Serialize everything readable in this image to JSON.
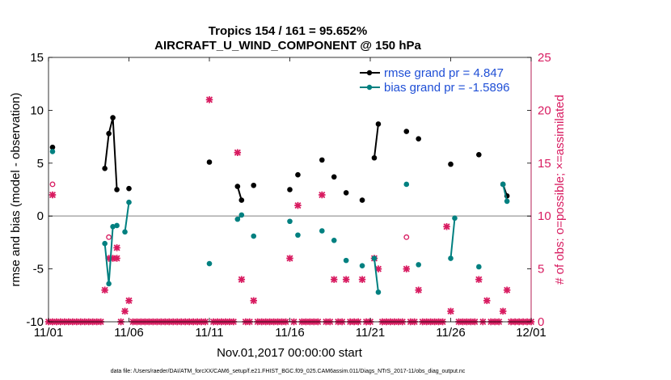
{
  "chart_data": {
    "type": "line",
    "title": "Tropics 154 / 161 = 95.652%",
    "subtitle": "AIRCRAFT_U_WIND_COMPONENT @ 150 hPa",
    "xlabel": "Nov.01,2017 00:00:00 start",
    "ylabel": "rmse and bias (model - observation)",
    "y2label": "# of obs: o=possible; ×=assimilated",
    "footer": "data file: /Users/raeder/DAI/ATM_forcXX/CAM6_setup/f.e21.FHIST_BGC.f09_025.CAM6assim.011/Diags_NTrS_2017-11/obs_diag_output.nc",
    "x_ticks": [
      "11/01",
      "11/06",
      "11/11",
      "11/16",
      "11/21",
      "11/26",
      "12/01"
    ],
    "xlim": [
      1,
      31
    ],
    "ylim": [
      -10,
      15
    ],
    "y_ticks": [
      -10,
      -5,
      0,
      5,
      10,
      15
    ],
    "y2lim": [
      0,
      25
    ],
    "y2_ticks": [
      0,
      5,
      10,
      15,
      20,
      25
    ],
    "zero_line": 0,
    "legend_position": "top-right",
    "colors": {
      "rmse": "#000000",
      "bias": "#008080",
      "obs": "#d81b60",
      "legend_text": "#1f4fd6",
      "zero_line": "#b0b0b0"
    },
    "series": [
      {
        "name": "rmse grand pr = 4.847",
        "key": "rmse",
        "points": [
          [
            1.25,
            6.5
          ],
          [
            4.5,
            4.5
          ],
          [
            4.75,
            7.8
          ],
          [
            5.0,
            9.3
          ],
          [
            5.25,
            2.5
          ],
          [
            6.0,
            2.6
          ],
          [
            11.0,
            5.1
          ],
          [
            12.75,
            2.8
          ],
          [
            13.0,
            1.5
          ],
          [
            13.75,
            2.9
          ],
          [
            16.0,
            2.5
          ],
          [
            16.5,
            3.9
          ],
          [
            18.0,
            5.3
          ],
          [
            18.75,
            3.7
          ],
          [
            19.5,
            2.2
          ],
          [
            20.5,
            1.5
          ],
          [
            21.25,
            5.5
          ],
          [
            21.5,
            8.7
          ],
          [
            23.25,
            8.0
          ],
          [
            24.0,
            7.3
          ],
          [
            26.0,
            4.9
          ],
          [
            27.75,
            5.8
          ],
          [
            29.25,
            3.0
          ],
          [
            29.5,
            1.9
          ]
        ]
      },
      {
        "name": "bias grand pr = -1.5896",
        "key": "bias",
        "points": [
          [
            1.25,
            6.1
          ],
          [
            4.5,
            -2.6
          ],
          [
            4.75,
            -6.4
          ],
          [
            5.0,
            -1.0
          ],
          [
            5.25,
            -0.9
          ],
          [
            5.75,
            -1.5
          ],
          [
            6.0,
            1.3
          ],
          [
            11.0,
            -4.5
          ],
          [
            12.75,
            -0.3
          ],
          [
            13.0,
            0.1
          ],
          [
            13.75,
            -1.9
          ],
          [
            16.0,
            -0.5
          ],
          [
            16.5,
            -1.8
          ],
          [
            18.0,
            -1.4
          ],
          [
            18.75,
            -2.3
          ],
          [
            19.5,
            -4.2
          ],
          [
            20.5,
            -4.7
          ],
          [
            21.25,
            -4.0
          ],
          [
            21.5,
            -7.2
          ],
          [
            23.25,
            3.0
          ],
          [
            24.0,
            -4.6
          ],
          [
            26.0,
            -4.0
          ],
          [
            26.25,
            -0.2
          ],
          [
            27.75,
            -4.8
          ],
          [
            29.25,
            3.0
          ],
          [
            29.5,
            1.4
          ]
        ]
      }
    ],
    "segments": [
      [
        4.5,
        5.25
      ],
      [
        5.75,
        6.0
      ],
      [
        12.75,
        13.0
      ],
      [
        21.25,
        21.5
      ],
      [
        26.0,
        26.25
      ],
      [
        29.25,
        29.5
      ]
    ],
    "obs_possible": [
      [
        1.25,
        13
      ],
      [
        4.75,
        8
      ],
      [
        23.25,
        8
      ]
    ],
    "obs_assimilated": [
      [
        1.25,
        12
      ],
      [
        4.5,
        3
      ],
      [
        4.75,
        6
      ],
      [
        5.0,
        6
      ],
      [
        5.25,
        7
      ],
      [
        5.25,
        6
      ],
      [
        5.75,
        1
      ],
      [
        6.0,
        2
      ],
      [
        11.0,
        21
      ],
      [
        12.75,
        16
      ],
      [
        13.0,
        4
      ],
      [
        13.75,
        2
      ],
      [
        16.0,
        6
      ],
      [
        16.5,
        11
      ],
      [
        18.0,
        12
      ],
      [
        18.75,
        4
      ],
      [
        19.5,
        4
      ],
      [
        20.5,
        4
      ],
      [
        21.25,
        6
      ],
      [
        21.5,
        5
      ],
      [
        23.25,
        5
      ],
      [
        24.0,
        3
      ],
      [
        25.75,
        9
      ],
      [
        26.0,
        1
      ],
      [
        27.75,
        4
      ],
      [
        28.25,
        2
      ],
      [
        29.25,
        1
      ],
      [
        29.5,
        3
      ]
    ],
    "obs_zero_days": [
      1,
      1.25,
      1.5,
      1.75,
      2,
      2.25,
      2.5,
      2.75,
      3,
      3.25,
      3.5,
      3.75,
      4,
      4.25,
      5.5,
      6.25,
      6.5,
      6.75,
      7,
      7.25,
      7.5,
      7.75,
      8,
      8.25,
      8.5,
      8.75,
      9,
      9.25,
      9.5,
      9.75,
      10,
      10.25,
      10.5,
      10.75,
      11.25,
      11.5,
      11.75,
      12,
      12.25,
      12.5,
      13.25,
      13.5,
      14,
      14.25,
      14.5,
      14.75,
      15,
      15.25,
      15.5,
      15.75,
      16.25,
      16.75,
      17,
      17.25,
      17.5,
      17.75,
      18.25,
      18.5,
      19,
      19.25,
      19.75,
      20,
      20.25,
      20.75,
      21,
      21.75,
      22,
      22.25,
      22.5,
      22.75,
      23,
      23.5,
      23.75,
      24.25,
      24.5,
      24.75,
      25,
      25.25,
      25.5,
      26.5,
      26.75,
      27,
      27.25,
      27.5,
      28,
      28.5,
      28.75,
      29,
      29.75,
      30,
      30.25,
      30.5,
      30.75,
      31
    ]
  }
}
